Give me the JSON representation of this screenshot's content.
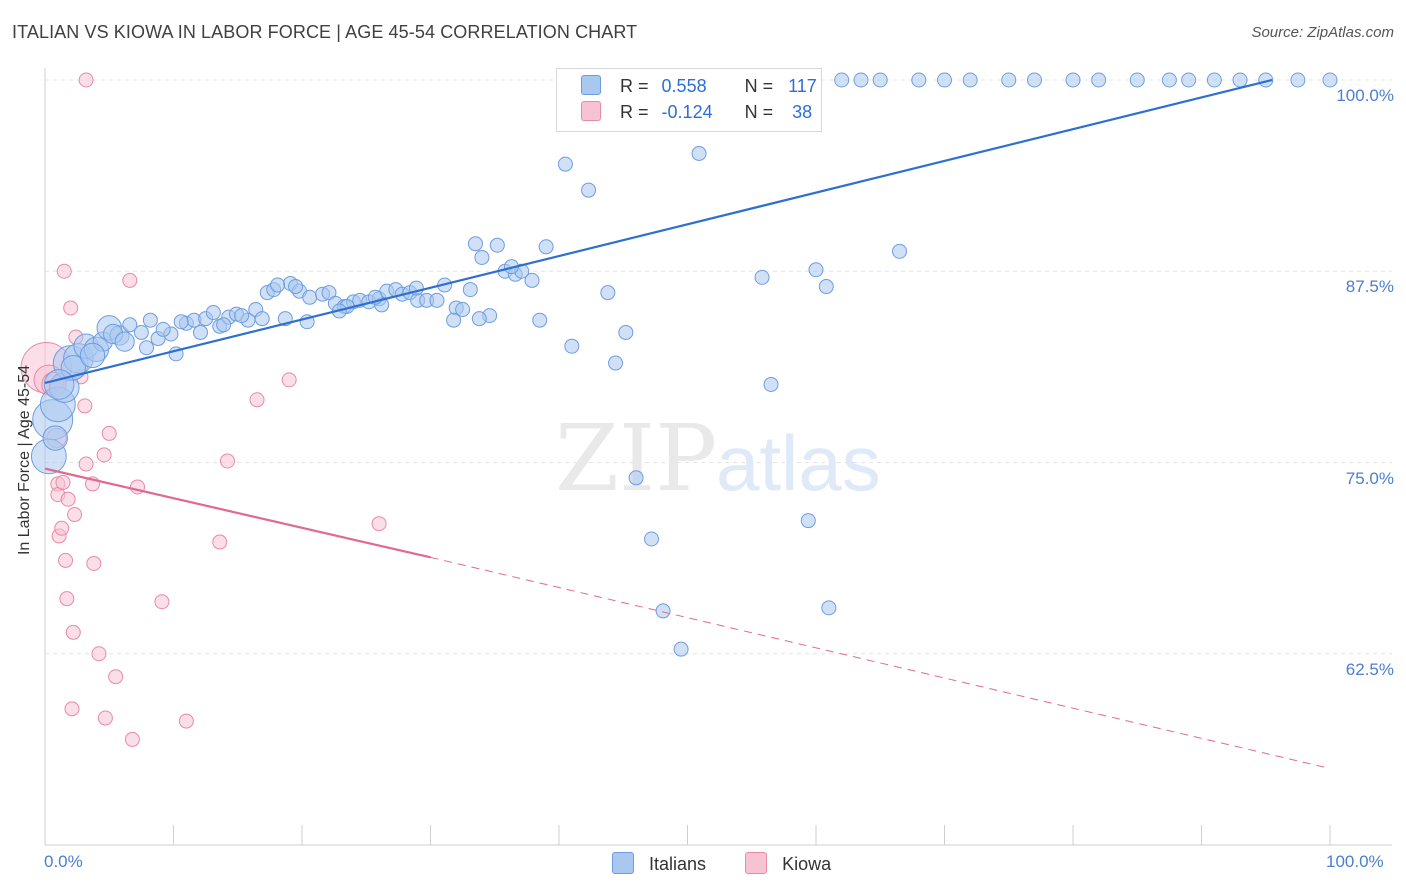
{
  "header": {
    "title": "ITALIAN VS KIOWA IN LABOR FORCE | AGE 45-54 CORRELATION CHART",
    "source": "Source: ZipAtlas.com"
  },
  "watermark": {
    "part1": "ZIP",
    "part2": "atlas"
  },
  "legend_top": {
    "rows": [
      {
        "r_label": "R =",
        "r_value": "0.558",
        "n_label": "N =",
        "n_value": "117"
      },
      {
        "r_label": "R =",
        "r_value": "-0.124",
        "n_label": "N =",
        "n_value": "38"
      }
    ]
  },
  "legend_bottom": {
    "items": [
      "Italians",
      "Kiowa"
    ]
  },
  "colors": {
    "italians_fill": "#a9c8f0",
    "italians_stroke": "#6d9de0",
    "italians_line": "#2f6fd0",
    "kiowa_fill": "#f7c3d3",
    "kiowa_stroke": "#e88aa8",
    "kiowa_line": "#e0698f",
    "grid": "#e4e4e4",
    "tick_text": "#4a7fd1"
  },
  "chart_data": {
    "type": "scatter",
    "title": "ITALIAN VS KIOWA IN LABOR FORCE | AGE 45-54 CORRELATION CHART",
    "xlabel": "",
    "ylabel": "In Labor Force | Age 45-54",
    "xlim": [
      0,
      100
    ],
    "ylim": [
      50,
      100.5
    ],
    "x_tick_labels": [
      "0.0%",
      "100.0%"
    ],
    "y_ticks": [
      100,
      87.5,
      75,
      62.5
    ],
    "y_tick_labels": [
      "100.0%",
      "87.5%",
      "75.0%",
      "62.5%"
    ],
    "grid": true,
    "legend_position": "top-center",
    "series": [
      {
        "name": "Italians",
        "r": 0.558,
        "n": 117,
        "trend": {
          "x": [
            0,
            95.5
          ],
          "y": [
            80.2,
            100
          ]
        },
        "points": [
          [
            0.3,
            75.4,
            7
          ],
          [
            0.6,
            77.8,
            8
          ],
          [
            1,
            78.8,
            7
          ],
          [
            1.5,
            79.9,
            6
          ],
          [
            2,
            81.5,
            7
          ],
          [
            2.6,
            81.8,
            6
          ],
          [
            3.2,
            82.6,
            5
          ],
          [
            4,
            82.4,
            5
          ],
          [
            4.5,
            82.9,
            4
          ],
          [
            5,
            83.8,
            5
          ],
          [
            5.8,
            83.3,
            4
          ],
          [
            6.6,
            84,
            3
          ],
          [
            7.5,
            83.5,
            3
          ],
          [
            8.2,
            84.3,
            3
          ],
          [
            8.8,
            83.1,
            3
          ],
          [
            9.8,
            83.4,
            3
          ],
          [
            10.2,
            82.1,
            3
          ],
          [
            11,
            84.1,
            3
          ],
          [
            11.6,
            84.3,
            3
          ],
          [
            12.5,
            84.4,
            3
          ],
          [
            13.1,
            84.8,
            3
          ],
          [
            13.6,
            83.9,
            3
          ],
          [
            14.3,
            84.5,
            3
          ],
          [
            14.9,
            84.7,
            3
          ],
          [
            15.8,
            84.3,
            3
          ],
          [
            16.4,
            85,
            3
          ],
          [
            17.3,
            86.1,
            3
          ],
          [
            17.8,
            86.3,
            3
          ],
          [
            18.7,
            84.4,
            3
          ],
          [
            19.1,
            86.7,
            3
          ],
          [
            19.8,
            86.2,
            3
          ],
          [
            20.4,
            84.2,
            3
          ],
          [
            20.6,
            85.8,
            3
          ],
          [
            21.6,
            86,
            3
          ],
          [
            22.1,
            86.1,
            3
          ],
          [
            22.6,
            85.4,
            3
          ],
          [
            23.3,
            85.2,
            3
          ],
          [
            24,
            85.5,
            3
          ],
          [
            24.5,
            85.6,
            3
          ],
          [
            25.2,
            85.5,
            3
          ],
          [
            26,
            85.7,
            3
          ],
          [
            26.6,
            86.2,
            3
          ],
          [
            27.3,
            86.3,
            3
          ],
          [
            27.8,
            86,
            3
          ],
          [
            28.4,
            86.1,
            3
          ],
          [
            29,
            85.6,
            3
          ],
          [
            29.7,
            85.6,
            3
          ],
          [
            30.5,
            85.6,
            3
          ],
          [
            31.1,
            86.6,
            3
          ],
          [
            32,
            85.1,
            3
          ],
          [
            32.5,
            85,
            3
          ],
          [
            33.1,
            86.3,
            3
          ],
          [
            33.5,
            89.3,
            3
          ],
          [
            34,
            88.4,
            3
          ],
          [
            34.6,
            84.6,
            3
          ],
          [
            35.2,
            89.2,
            3
          ],
          [
            35.8,
            87.5,
            3
          ],
          [
            36.6,
            87.3,
            3
          ],
          [
            37.1,
            87.5,
            3
          ],
          [
            37.9,
            86.9,
            3
          ],
          [
            38.5,
            84.3,
            3
          ],
          [
            39,
            89.1,
            3
          ],
          [
            40.5,
            94.5,
            3
          ],
          [
            41,
            82.6,
            3
          ],
          [
            42.3,
            92.8,
            3
          ],
          [
            43.8,
            86.1,
            3
          ],
          [
            44.4,
            81.5,
            3
          ],
          [
            45.2,
            83.5,
            3
          ],
          [
            46,
            74,
            3
          ],
          [
            47.2,
            70,
            3
          ],
          [
            48.1,
            65.3,
            3
          ],
          [
            49.5,
            62.8,
            3
          ],
          [
            50.9,
            95.2,
            3
          ],
          [
            52,
            100,
            3
          ],
          [
            53.5,
            100,
            3
          ],
          [
            55,
            100,
            3
          ],
          [
            55.8,
            87.1,
            3
          ],
          [
            56.5,
            80.1,
            3
          ],
          [
            58,
            100,
            3
          ],
          [
            59.4,
            71.2,
            3
          ],
          [
            60,
            87.6,
            3
          ],
          [
            61,
            65.5,
            3
          ],
          [
            62,
            100,
            3
          ],
          [
            63.5,
            100,
            3
          ],
          [
            65,
            100,
            3
          ],
          [
            66.5,
            88.8,
            3
          ],
          [
            68,
            100,
            3
          ],
          [
            70,
            100,
            3
          ],
          [
            72,
            100,
            3
          ],
          [
            75,
            100,
            3
          ],
          [
            77,
            100,
            3
          ],
          [
            80,
            100,
            3
          ],
          [
            82,
            100,
            3
          ],
          [
            85,
            100,
            3
          ],
          [
            87.5,
            100,
            3
          ],
          [
            89,
            100,
            3
          ],
          [
            91,
            100,
            3
          ],
          [
            93,
            100,
            3
          ],
          [
            95,
            100,
            3
          ],
          [
            97.5,
            100,
            3
          ],
          [
            100,
            100,
            3
          ],
          [
            60.8,
            86.5,
            3
          ],
          [
            36.3,
            87.8,
            3
          ],
          [
            33.8,
            84.4,
            3
          ],
          [
            31.8,
            84.3,
            3
          ],
          [
            28.9,
            86.4,
            3
          ],
          [
            26.2,
            85.3,
            3
          ],
          [
            23.5,
            85.2,
            3
          ],
          [
            18.1,
            86.6,
            3
          ],
          [
            15.3,
            84.6,
            3
          ],
          [
            12.1,
            83.5,
            3
          ],
          [
            9.2,
            83.7,
            3
          ],
          [
            5.3,
            83.4,
            4
          ],
          [
            2.2,
            81.2,
            5
          ],
          [
            1.1,
            80.1,
            6
          ],
          [
            0.8,
            76.6,
            5
          ],
          [
            3.7,
            82,
            5
          ],
          [
            6.2,
            82.9,
            4
          ],
          [
            7.9,
            82.5,
            3
          ],
          [
            10.6,
            84.2,
            3
          ],
          [
            13.9,
            84,
            3
          ],
          [
            16.9,
            84.4,
            3
          ],
          [
            19.5,
            86.5,
            3
          ],
          [
            22.9,
            84.9,
            3
          ],
          [
            25.7,
            85.8,
            3
          ]
        ]
      },
      {
        "name": "Kiowa",
        "r": -0.124,
        "n": 38,
        "trend": {
          "x": [
            0,
            30
          ],
          "y": [
            74.6,
            68.8
          ]
        },
        "trend_dashed": {
          "x": [
            30,
            100
          ],
          "y": [
            68.8,
            55
          ]
        },
        "points": [
          [
            0.1,
            81.2,
            10
          ],
          [
            0.3,
            80.4,
            6
          ],
          [
            0.7,
            80.1,
            5
          ],
          [
            0.9,
            76.6,
            4
          ],
          [
            1,
            73.6,
            3
          ],
          [
            1,
            72.9,
            3
          ],
          [
            1.1,
            70.2,
            3
          ],
          [
            1.3,
            70.7,
            3
          ],
          [
            1.4,
            73.7,
            3
          ],
          [
            1.5,
            87.5,
            3
          ],
          [
            1.6,
            68.6,
            3
          ],
          [
            1.7,
            66.1,
            3
          ],
          [
            1.8,
            72.6,
            3
          ],
          [
            2,
            85.1,
            3
          ],
          [
            2.1,
            58.9,
            3
          ],
          [
            2.2,
            63.9,
            3
          ],
          [
            2.3,
            71.6,
            3
          ],
          [
            2.4,
            83.2,
            3
          ],
          [
            2.8,
            80.6,
            3
          ],
          [
            3.1,
            78.7,
            3
          ],
          [
            3.2,
            100,
            3
          ],
          [
            3.2,
            74.9,
            3
          ],
          [
            3.7,
            73.6,
            3
          ],
          [
            3.8,
            68.4,
            3
          ],
          [
            4.2,
            62.5,
            3
          ],
          [
            4.6,
            75.5,
            3
          ],
          [
            4.7,
            58.3,
            3
          ],
          [
            5,
            76.9,
            3
          ],
          [
            5.5,
            61,
            3
          ],
          [
            6.6,
            86.9,
            3
          ],
          [
            6.8,
            56.9,
            3
          ],
          [
            7.2,
            73.4,
            3
          ],
          [
            9.1,
            65.9,
            3
          ],
          [
            11,
            58.1,
            3
          ],
          [
            13.6,
            69.8,
            3
          ],
          [
            14.2,
            75.1,
            3
          ],
          [
            16.5,
            79.1,
            3
          ],
          [
            19,
            80.4,
            3
          ],
          [
            26,
            71,
            3
          ]
        ]
      }
    ]
  }
}
